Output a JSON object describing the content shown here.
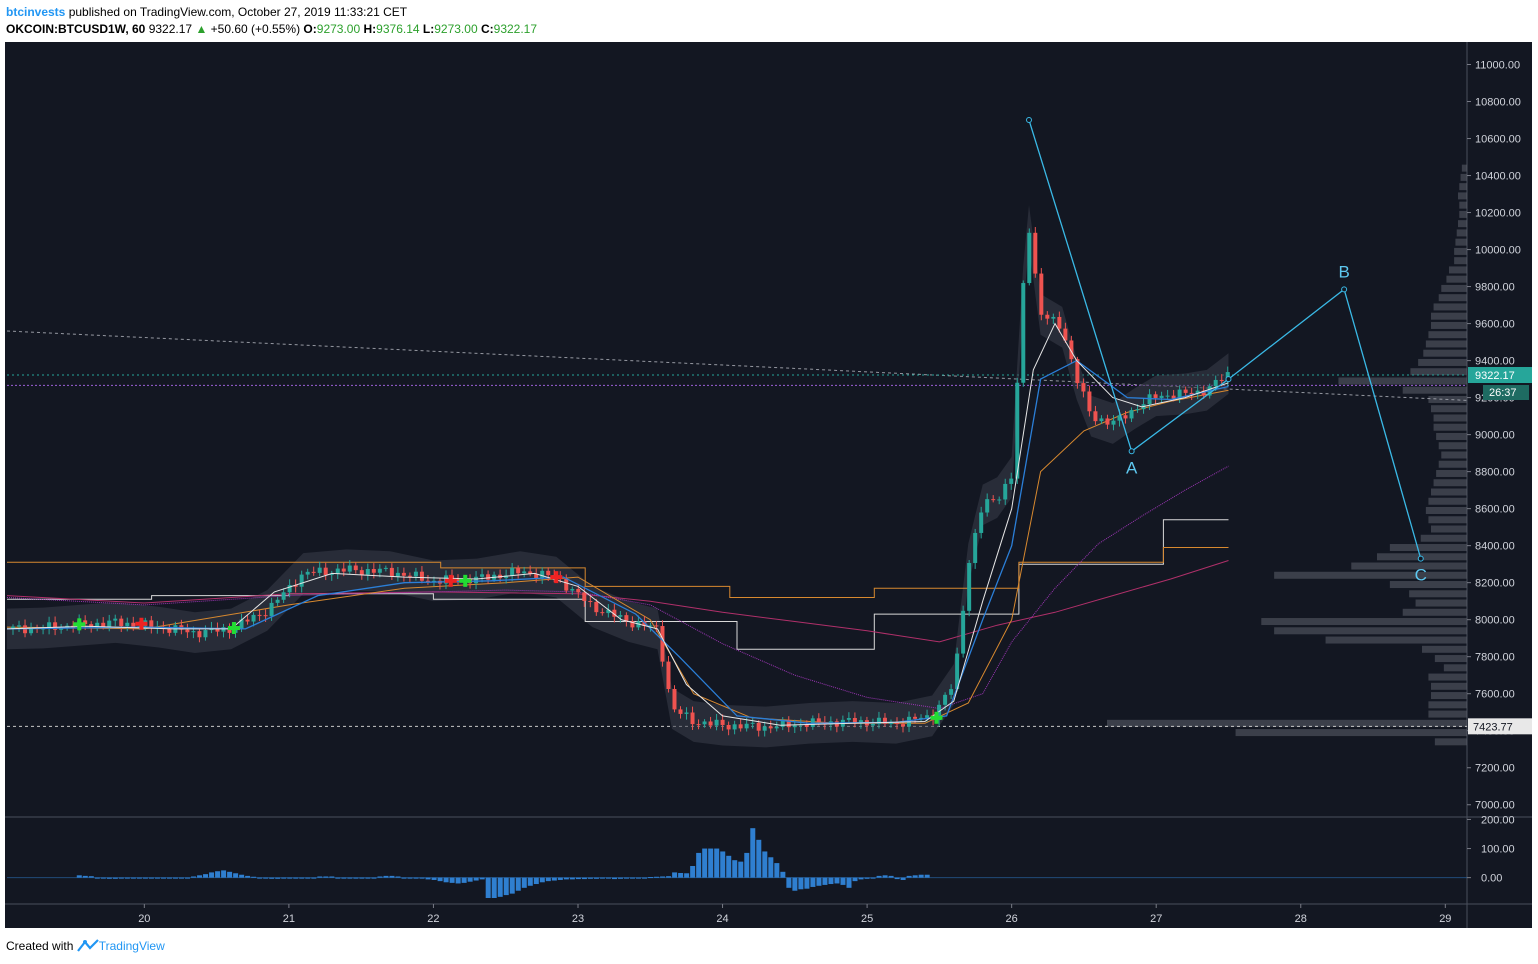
{
  "header": {
    "author": "btcinvests",
    "published_text": "published on TradingView.com, October 27, 2019 11:33:21 CET",
    "symbol": "OKCOIN:BTCUSD1W, 60",
    "last": "9322.17",
    "change_arrow": "▲",
    "change": "+50.60 (+0.55%)",
    "o_label": "O:",
    "o": "9273.00",
    "h_label": "H:",
    "h": "9376.14",
    "l_label": "L:",
    "l": "9273.00",
    "c_label": "C:",
    "c": "9322.17"
  },
  "footer": {
    "created_with": "Created with",
    "brand": "TradingView"
  },
  "colors": {
    "background": "#131722",
    "candle_up": "#26a69a",
    "candle_down": "#ef5350",
    "wave_line": "#3ab9e6",
    "histogram": "#2f7fd0",
    "price_tag": "#26a69a",
    "ma_orange": "#d8892f",
    "ma_purple": "#9c36b5",
    "hline_purple": "#9c5fd6",
    "buy_signal": "#22dd33",
    "sell_signal": "#ee2222"
  },
  "chart_data": {
    "type": "line",
    "title": "",
    "ylim": [
      6950,
      11100
    ],
    "y_ticks": [
      "11000.00",
      "10800.00",
      "10600.00",
      "10400.00",
      "10200.00",
      "10000.00",
      "9800.00",
      "9600.00",
      "9400.00",
      "9200.00",
      "9000.00",
      "8800.00",
      "8600.00",
      "8400.00",
      "8200.00",
      "8000.00",
      "7800.00",
      "7600.00",
      "7400.00",
      "7200.00",
      "7000.00"
    ],
    "y_tick_values": [
      11000,
      10800,
      10600,
      10400,
      10200,
      10000,
      9800,
      9600,
      9400,
      9200,
      9000,
      8800,
      8600,
      8400,
      8200,
      8000,
      7800,
      7600,
      7400,
      7200,
      7000
    ],
    "x_ticks": [
      "20",
      "21",
      "22",
      "23",
      "24",
      "25",
      "26",
      "27",
      "28",
      "29"
    ],
    "x_tick_values": [
      20,
      21,
      22,
      23,
      24,
      25,
      26,
      27,
      28,
      29
    ],
    "xlim": [
      19.05,
      29.15
    ],
    "price_labels": {
      "current": "9322.17",
      "countdown": "26:37",
      "level": "7423.77"
    },
    "horizontal_levels": [
      9322.17,
      9266,
      7423.77
    ],
    "trendline": {
      "x": [
        19.05,
        29.15
      ],
      "y": [
        9560,
        9185
      ]
    },
    "price_series": {
      "x": [
        19.05,
        19.3,
        19.55,
        19.8,
        20.1,
        20.35,
        20.6,
        20.85,
        21.1,
        21.4,
        21.7,
        22.0,
        22.3,
        22.6,
        22.85,
        23.1,
        23.35,
        23.55,
        23.65,
        23.8,
        24.0,
        24.3,
        24.6,
        24.9,
        25.2,
        25.45,
        25.6,
        25.7,
        25.8,
        25.9,
        26.0,
        26.08,
        26.12,
        26.2,
        26.35,
        26.45,
        26.55,
        26.7,
        26.85,
        27.0,
        27.2,
        27.35,
        27.5
      ],
      "y": [
        7950,
        7955,
        7970,
        7985,
        7960,
        7930,
        7950,
        8050,
        8250,
        8270,
        8260,
        8210,
        8220,
        8260,
        8230,
        8070,
        7990,
        7950,
        7520,
        7450,
        7430,
        7420,
        7440,
        7450,
        7440,
        7480,
        7650,
        8300,
        8620,
        8660,
        8770,
        9800,
        10130,
        9650,
        9580,
        9300,
        9100,
        9060,
        9140,
        9210,
        9220,
        9240,
        9330
      ]
    },
    "ema_fast": {
      "x": [
        19.05,
        19.6,
        20.2,
        20.6,
        20.9,
        21.3,
        21.8,
        22.3,
        22.7,
        23.0,
        23.3,
        23.55,
        23.75,
        24.0,
        24.4,
        24.9,
        25.4,
        25.6,
        25.8,
        26.0,
        26.15,
        26.3,
        26.45,
        26.7,
        26.9,
        27.2,
        27.5
      ],
      "y": [
        7950,
        7965,
        7950,
        7950,
        8150,
        8250,
        8230,
        8220,
        8250,
        8180,
        8000,
        7950,
        7650,
        7480,
        7430,
        7440,
        7450,
        7560,
        8100,
        8600,
        9350,
        9600,
        9400,
        9200,
        9150,
        9200,
        9280
      ]
    },
    "ema_slow": {
      "x": [
        19.05,
        20.0,
        20.7,
        21.2,
        21.8,
        22.4,
        22.9,
        23.4,
        23.7,
        24.1,
        24.6,
        25.2,
        25.55,
        25.8,
        26.0,
        26.2,
        26.45,
        26.8,
        27.1,
        27.5
      ],
      "y": [
        7950,
        7960,
        7950,
        8130,
        8200,
        8210,
        8230,
        8030,
        7800,
        7480,
        7440,
        7445,
        7480,
        8000,
        8400,
        9300,
        9400,
        9200,
        9190,
        9260
      ]
    },
    "ma_orange": {
      "x": [
        19.05,
        20.0,
        21.0,
        21.8,
        22.5,
        23.0,
        23.5,
        23.8,
        24.2,
        24.8,
        25.4,
        25.7,
        26.0,
        26.2,
        26.5,
        26.8,
        27.1,
        27.5
      ],
      "y": [
        7960,
        7950,
        8080,
        8170,
        8200,
        8230,
        8000,
        7600,
        7470,
        7440,
        7440,
        7550,
        8000,
        8800,
        9020,
        9120,
        9180,
        9240
      ]
    },
    "ma_purple": {
      "x": [
        19.05,
        20.0,
        21.0,
        22.0,
        22.5,
        23.0,
        23.5,
        24.0,
        24.5,
        25.0,
        25.5,
        25.8,
        26.0,
        26.3,
        26.6,
        26.9,
        27.2,
        27.5
      ],
      "y": [
        8120,
        8080,
        8130,
        8150,
        8160,
        8150,
        8080,
        7870,
        7700,
        7580,
        7520,
        7600,
        7880,
        8170,
        8410,
        8560,
        8700,
        8830
      ]
    },
    "ma_red": {
      "x": [
        19.05,
        20.0,
        21.0,
        22.0,
        23.0,
        23.5,
        24.0,
        24.5,
        25.0,
        25.5,
        25.9,
        26.3,
        26.7,
        27.1,
        27.5
      ],
      "y": [
        8130,
        8090,
        8140,
        8150,
        8140,
        8100,
        8040,
        7990,
        7940,
        7880,
        7970,
        8040,
        8130,
        8220,
        8320
      ]
    },
    "vwap_white": {
      "x": [
        19.05,
        20.05,
        20.05,
        21.0,
        21.0,
        22.0,
        22.0,
        23.05,
        23.05,
        24.1,
        24.1,
        25.05,
        25.05,
        26.05,
        26.05,
        27.05,
        27.05,
        27.5
      ],
      "y": [
        8110,
        8110,
        8130,
        8130,
        8140,
        8140,
        8110,
        8110,
        7990,
        7990,
        7840,
        7840,
        8030,
        8030,
        8300,
        8300,
        8540,
        8540
      ]
    },
    "vwap_orange": {
      "x": [
        19.05,
        22.05,
        22.05,
        23.05,
        23.05,
        24.05,
        24.05,
        25.05,
        25.05,
        26.05,
        26.05,
        27.05,
        27.05,
        27.5
      ],
      "y": [
        8310,
        8310,
        8280,
        8280,
        8180,
        8180,
        8120,
        8120,
        8170,
        8170,
        8310,
        8310,
        8390,
        8390
      ]
    },
    "wave_points": [
      {
        "label": "",
        "x": 26.12,
        "y": 10700
      },
      {
        "label": "A",
        "x": 26.83,
        "y": 8910
      },
      {
        "label": "",
        "x": 27.5,
        "y": 9300
      },
      {
        "label": "B",
        "x": 28.3,
        "y": 9785
      },
      {
        "label": "C",
        "x": 28.83,
        "y": 8330
      }
    ],
    "wave_labels": [
      "A",
      "B",
      "C"
    ],
    "signals": [
      {
        "type": "buy",
        "x": 19.55,
        "y": 7975
      },
      {
        "type": "sell",
        "x": 19.98,
        "y": 7978
      },
      {
        "type": "buy",
        "x": 20.62,
        "y": 7955
      },
      {
        "type": "sell",
        "x": 22.12,
        "y": 8210
      },
      {
        "type": "buy",
        "x": 22.22,
        "y": 8210
      },
      {
        "type": "sell",
        "x": 22.85,
        "y": 8230
      },
      {
        "type": "buy",
        "x": 25.48,
        "y": 7470
      }
    ],
    "volume_profile": {
      "prices": [
        10440,
        10390,
        10340,
        10290,
        10240,
        10190,
        10140,
        10090,
        10040,
        9990,
        9940,
        9890,
        9840,
        9790,
        9740,
        9690,
        9640,
        9590,
        9540,
        9490,
        9440,
        9390,
        9340,
        9290,
        9240,
        9190,
        9140,
        9090,
        9040,
        8990,
        8940,
        8890,
        8840,
        8790,
        8740,
        8690,
        8640,
        8590,
        8540,
        8490,
        8440,
        8390,
        8340,
        8290,
        8240,
        8190,
        8140,
        8090,
        8040,
        7990,
        7940,
        7890,
        7840,
        7790,
        7740,
        7690,
        7640,
        7590,
        7540,
        7490,
        7440,
        7390,
        7340
      ],
      "volumes": [
        4,
        5,
        6,
        7,
        6,
        6,
        7,
        8,
        9,
        10,
        10,
        14,
        16,
        20,
        22,
        26,
        28,
        28,
        30,
        32,
        34,
        38,
        44,
        100,
        50,
        30,
        28,
        26,
        26,
        24,
        22,
        20,
        22,
        24,
        26,
        28,
        30,
        32,
        30,
        28,
        36,
        60,
        70,
        90,
        150,
        60,
        45,
        40,
        50,
        160,
        150,
        110,
        35,
        25,
        18,
        30,
        28,
        28,
        30,
        30,
        280,
        180,
        25
      ]
    },
    "volume_profile_max": 280,
    "oscillator": {
      "ylim": [
        -70,
        205
      ],
      "y_ticks": [
        "200.00",
        "100.00",
        "0.00"
      ],
      "y_tick_values": [
        200,
        100,
        0
      ],
      "x_start": 19.55,
      "x_step": 0.0416,
      "values": [
        8,
        6,
        5,
        0,
        -2,
        -4,
        -4,
        -3,
        -3,
        -3,
        -3,
        -3,
        -3,
        -3,
        -2,
        -2,
        -2,
        0,
        0,
        4,
        8,
        12,
        18,
        22,
        25,
        20,
        15,
        10,
        6,
        3,
        0,
        -2,
        -4,
        -4,
        -3,
        -3,
        -2,
        -2,
        0,
        0,
        4,
        4,
        4,
        0,
        -3,
        -3,
        -2,
        -1,
        0,
        0,
        4,
        6,
        6,
        4,
        0,
        0,
        0,
        -2,
        -6,
        -8,
        -12,
        -16,
        -18,
        -20,
        -18,
        -14,
        -10,
        -6,
        -70,
        -70,
        -66,
        -60,
        -55,
        -45,
        -35,
        -28,
        -22,
        -16,
        -12,
        -10,
        -8,
        -6,
        -6,
        -5,
        -5,
        -4,
        -4,
        -3,
        0,
        -5,
        -4,
        -3,
        0,
        0,
        0,
        2,
        3,
        4,
        5,
        18,
        16,
        15,
        40,
        85,
        100,
        100,
        100,
        90,
        75,
        60,
        55,
        85,
        170,
        130,
        90,
        70,
        50,
        20,
        -35,
        -45,
        -40,
        -38,
        -32,
        -28,
        -25,
        -22,
        -20,
        -25,
        -35,
        -12,
        -6,
        -4,
        -3,
        6,
        8,
        6,
        -5,
        -8,
        6,
        8,
        10,
        10
      ]
    }
  }
}
